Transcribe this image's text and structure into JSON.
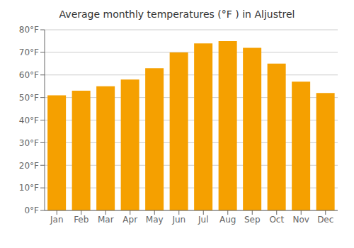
{
  "chart_data": {
    "type": "bar",
    "title": "Average monthly temperatures (°F ) in Aljustrel",
    "categories": [
      "Jan",
      "Feb",
      "Mar",
      "Apr",
      "May",
      "Jun",
      "Jul",
      "Aug",
      "Sep",
      "Oct",
      "Nov",
      "Dec"
    ],
    "values": [
      51,
      53,
      55,
      58,
      63,
      70,
      74,
      75,
      72,
      65,
      57,
      52
    ],
    "color": "#F5A000",
    "ylim": [
      0,
      80
    ],
    "yticks": [
      {
        "value": 0,
        "label": "0°F"
      },
      {
        "value": 10,
        "label": "10°F"
      },
      {
        "value": 20,
        "label": "20°F"
      },
      {
        "value": 30,
        "label": "30°F"
      },
      {
        "value": 40,
        "label": "40°F"
      },
      {
        "value": 50,
        "label": "50°F"
      },
      {
        "value": 60,
        "label": "60°F"
      },
      {
        "value": 70,
        "label": "70°F"
      },
      {
        "value": 80,
        "label": "80°F"
      }
    ],
    "grid": true
  }
}
